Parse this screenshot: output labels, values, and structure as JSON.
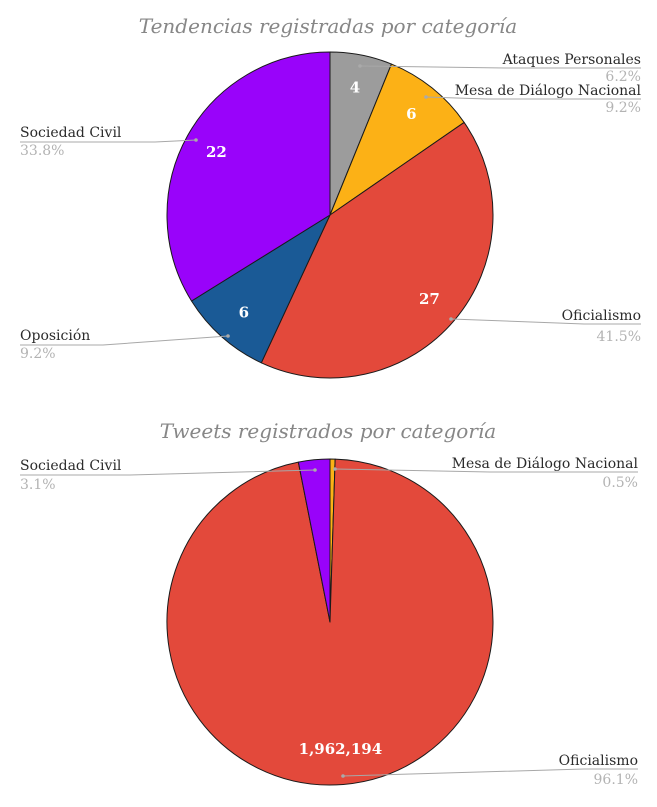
{
  "page": {
    "background": "#ffffff"
  },
  "chart_data": [
    {
      "type": "pie",
      "title": "Tendencias registradas por categoría",
      "start": "top",
      "direction": "clockwise",
      "legend_position": "callout-labels",
      "slices": [
        {
          "label": "Ataques Personales",
          "share": 4,
          "value_label": "4",
          "pct": "6.2%",
          "color": "#9c9c9c"
        },
        {
          "label": "Mesa de Diálogo Nacional",
          "share": 6,
          "value_label": "6",
          "pct": "9.2%",
          "color": "#fcb116"
        },
        {
          "label": "Oficialismo",
          "share": 27,
          "value_label": "27",
          "pct": "41.5%",
          "color": "#e3493b"
        },
        {
          "label": "Oposición",
          "share": 6,
          "value_label": "6",
          "pct": "9.2%",
          "color": "#1a5a96"
        },
        {
          "label": "Sociedad Civil",
          "share": 22,
          "value_label": "22",
          "pct": "33.8%",
          "color": "#9903fa"
        }
      ]
    },
    {
      "type": "pie",
      "title": "Tweets registrados por categoría",
      "start": "top",
      "direction": "clockwise",
      "legend_position": "callout-labels",
      "slices": [
        {
          "label": "Mesa de Diálogo Nacional",
          "share": 0.5,
          "value_label": "",
          "pct": "0.5%",
          "color": "#fcb116"
        },
        {
          "label": "Oficialismo",
          "share": 96.1,
          "value_label": "1,962,194",
          "pct": "96.1%",
          "color": "#e3493b"
        },
        {
          "label": "Sociedad Civil",
          "share": 3.1,
          "value_label": "",
          "pct": "3.1%",
          "color": "#9903fa"
        }
      ]
    }
  ]
}
